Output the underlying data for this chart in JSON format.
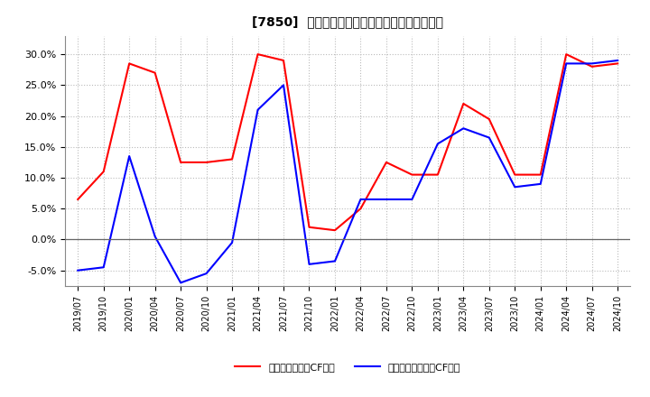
{
  "title": "[7850]  有利子負債キャッシュフロー比率の推移",
  "x_labels": [
    "2019/07",
    "2019/10",
    "2020/01",
    "2020/04",
    "2020/07",
    "2020/10",
    "2021/01",
    "2021/04",
    "2021/07",
    "2021/10",
    "2022/01",
    "2022/04",
    "2022/07",
    "2022/10",
    "2023/01",
    "2023/04",
    "2023/07",
    "2023/10",
    "2024/01",
    "2024/04",
    "2024/07",
    "2024/10"
  ],
  "red_values": [
    6.5,
    11.0,
    28.5,
    27.0,
    12.5,
    12.5,
    13.0,
    30.0,
    29.0,
    2.0,
    1.5,
    5.0,
    12.5,
    10.5,
    10.5,
    22.0,
    19.5,
    10.5,
    10.5,
    30.0,
    28.0,
    28.5
  ],
  "blue_values": [
    -5.0,
    -4.5,
    13.5,
    0.5,
    -7.0,
    -5.5,
    -0.5,
    21.0,
    25.0,
    -4.0,
    -3.5,
    6.5,
    6.5,
    6.5,
    15.5,
    18.0,
    16.5,
    8.5,
    9.0,
    28.5,
    28.5,
    29.0
  ],
  "red_label": "有利子負債営業CF比率",
  "blue_label": "有利子負債フリーCF比率",
  "red_color": "#ff0000",
  "blue_color": "#0000ff",
  "background_color": "#ffffff",
  "plot_bg_color": "#ffffff",
  "grid_color": "#aaaaaa",
  "ylim": [
    -7.5,
    33.0
  ],
  "yticks": [
    -5.0,
    0.0,
    5.0,
    10.0,
    15.0,
    20.0,
    25.0,
    30.0
  ]
}
